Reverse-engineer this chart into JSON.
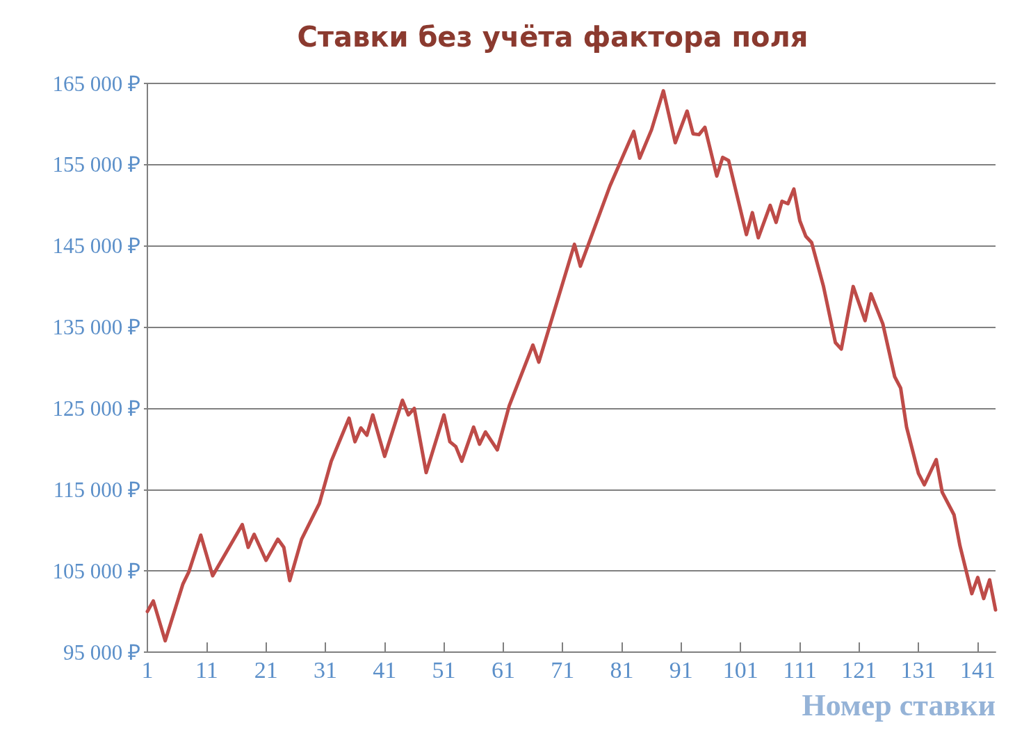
{
  "chart_data": {
    "type": "line",
    "title": "Ставки без учёта фактора поля",
    "xlabel": "Номер ставки",
    "x": [
      1,
      2,
      4,
      7,
      8,
      10,
      12,
      17,
      18,
      19,
      21,
      23,
      24,
      25,
      27,
      30,
      32,
      35,
      36,
      37,
      38,
      39,
      41,
      44,
      45,
      46,
      48,
      51,
      52,
      53,
      54,
      56,
      57,
      58,
      60,
      62,
      66,
      67,
      73,
      74,
      79,
      83,
      84,
      86,
      88,
      90,
      92,
      93,
      94,
      95,
      97,
      98,
      99,
      102,
      103,
      104,
      106,
      107,
      108,
      109,
      110,
      111,
      112,
      113,
      115,
      117,
      118,
      120,
      122,
      123,
      125,
      127,
      128,
      129,
      131,
      132,
      134,
      135,
      137,
      138,
      140,
      141,
      142,
      143,
      144
    ],
    "series": [
      {
        "color": "#be4b48",
        "values": [
          100000,
          101300,
          96400,
          103400,
          104900,
          109400,
          104400,
          110700,
          107900,
          109500,
          106300,
          108900,
          107900,
          103800,
          108900,
          113300,
          118500,
          123800,
          120900,
          122600,
          121700,
          124200,
          119100,
          126000,
          124200,
          125000,
          117100,
          124200,
          120900,
          120300,
          118500,
          122700,
          120600,
          122100,
          119900,
          125300,
          132800,
          130700,
          145200,
          142500,
          152400,
          159100,
          155800,
          159300,
          164100,
          157700,
          161600,
          158800,
          158700,
          159600,
          153600,
          155900,
          155500,
          146400,
          149100,
          146000,
          150000,
          147900,
          150500,
          150200,
          152000,
          148100,
          146200,
          145400,
          140000,
          133100,
          132300,
          140000,
          135800,
          139100,
          135400,
          128900,
          127500,
          122700,
          117000,
          115600,
          118700,
          114700,
          111900,
          108100,
          102200,
          104200,
          101600,
          103900,
          100200
        ]
      }
    ],
    "xlim": [
      1,
      144
    ],
    "xticks": [
      1,
      11,
      21,
      31,
      41,
      51,
      61,
      71,
      81,
      91,
      101,
      111,
      121,
      131,
      141
    ],
    "ylim": [
      95000,
      165000
    ],
    "yticks": [
      {
        "value": 95000,
        "label": "95 000 ₽"
      },
      {
        "value": 105000,
        "label": "105 000 ₽"
      },
      {
        "value": 115000,
        "label": "115 000 ₽"
      },
      {
        "value": 125000,
        "label": "125 000 ₽"
      },
      {
        "value": 135000,
        "label": "135 000 ₽"
      },
      {
        "value": 145000,
        "label": "145 000 ₽"
      },
      {
        "value": 155000,
        "label": "155 000 ₽"
      },
      {
        "value": 165000,
        "label": "165 000 ₽"
      }
    ],
    "grid": "y",
    "line_style": "solid"
  }
}
